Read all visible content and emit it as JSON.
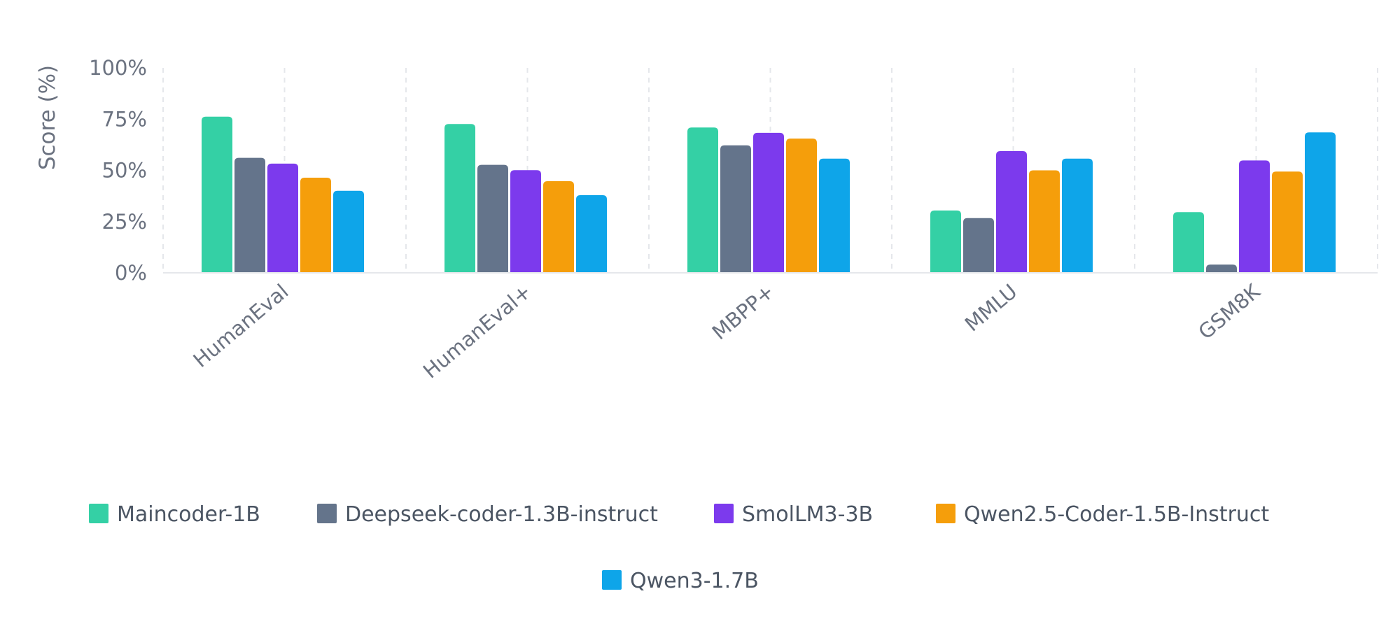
{
  "chart_data": {
    "type": "bar",
    "ylabel": "Score (%)",
    "xlabel": "",
    "ylim": [
      0,
      100
    ],
    "yticks": [
      0,
      25,
      50,
      75,
      100
    ],
    "ytick_labels": [
      "0%",
      "25%",
      "50%",
      "75%",
      "100%"
    ],
    "categories": [
      "HumanEval",
      "HumanEval+",
      "MBPP+",
      "MMLU",
      "GSM8K"
    ],
    "grid": "vertical dashed",
    "legend_position": "bottom-center",
    "series": [
      {
        "name": "Maincoder-1B",
        "color": "#34d0a5",
        "values": [
          76.2,
          72.6,
          70.9,
          30.4,
          29.6
        ]
      },
      {
        "name": "Deepseek-coder-1.3B-instruct",
        "color": "#64748b",
        "values": [
          56.1,
          52.7,
          62.2,
          26.7,
          4.0
        ]
      },
      {
        "name": "SmolLM3-3B",
        "color": "#7c3aed",
        "values": [
          53.3,
          50.1,
          68.3,
          59.4,
          54.8
        ]
      },
      {
        "name": "Qwen2.5-Coder-1.5B-Instruct",
        "color": "#f59e0b",
        "values": [
          46.4,
          44.7,
          65.5,
          50.0,
          49.4
        ]
      },
      {
        "name": "Qwen3-1.7B",
        "color": "#0ea5e9",
        "values": [
          40.0,
          37.9,
          55.7,
          55.7,
          68.5
        ]
      }
    ]
  }
}
